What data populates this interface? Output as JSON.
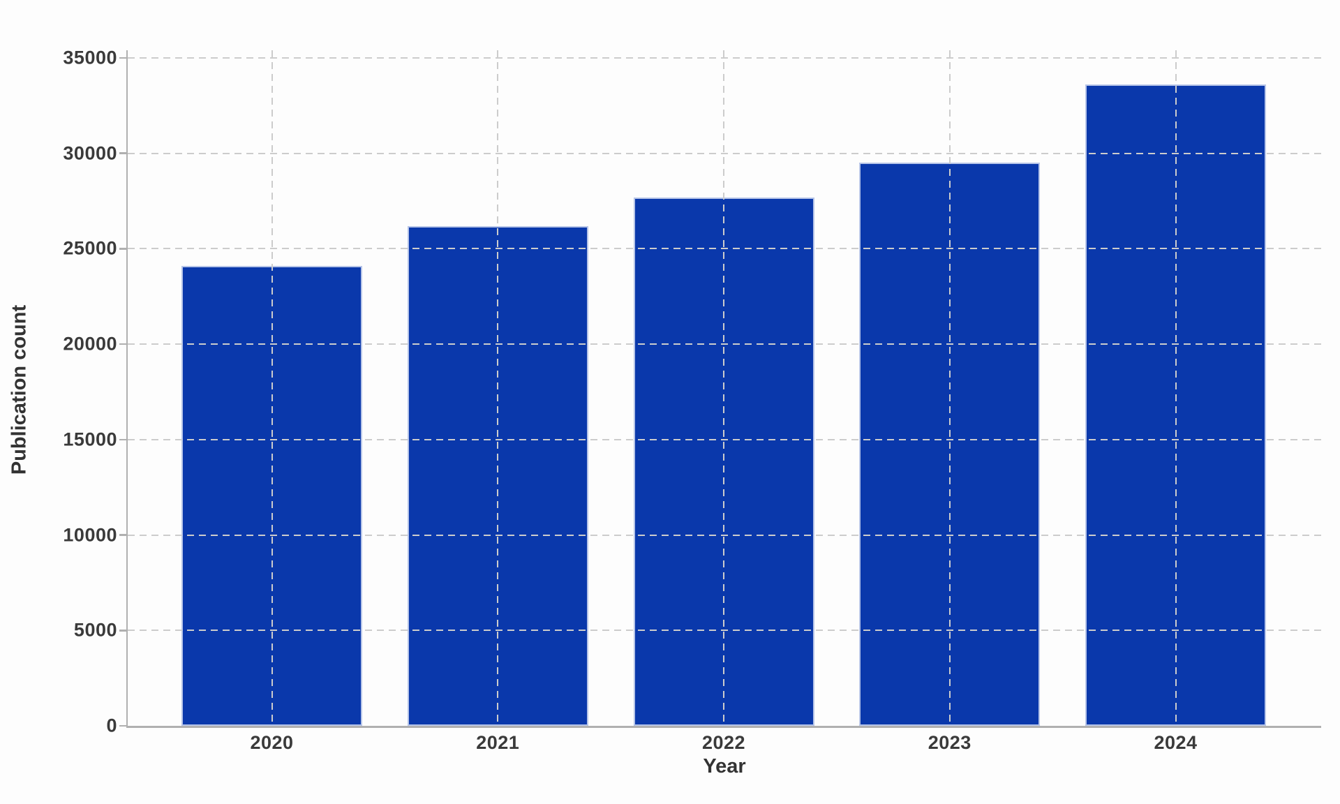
{
  "chart_data": {
    "type": "bar",
    "title": "",
    "categories": [
      "2020",
      "2021",
      "2022",
      "2023",
      "2024"
    ],
    "values": [
      24100,
      26200,
      27700,
      29500,
      33600
    ],
    "xlabel": "Year",
    "ylabel": "Publication count",
    "ylim": [
      0,
      35000
    ],
    "ytick_step": 5000,
    "yticks": [
      0,
      5000,
      10000,
      15000,
      20000,
      25000,
      30000,
      35000
    ],
    "grid": "dashed-both-axes-drawn-over-bars",
    "legend": "none",
    "colors": {
      "bar": "#0a38ab",
      "bar_edge": "#d6def2",
      "grid": "#cccccc",
      "axis": "#b0b0b0",
      "text": "#3a3a3a",
      "background": "#fdfdfd"
    }
  }
}
